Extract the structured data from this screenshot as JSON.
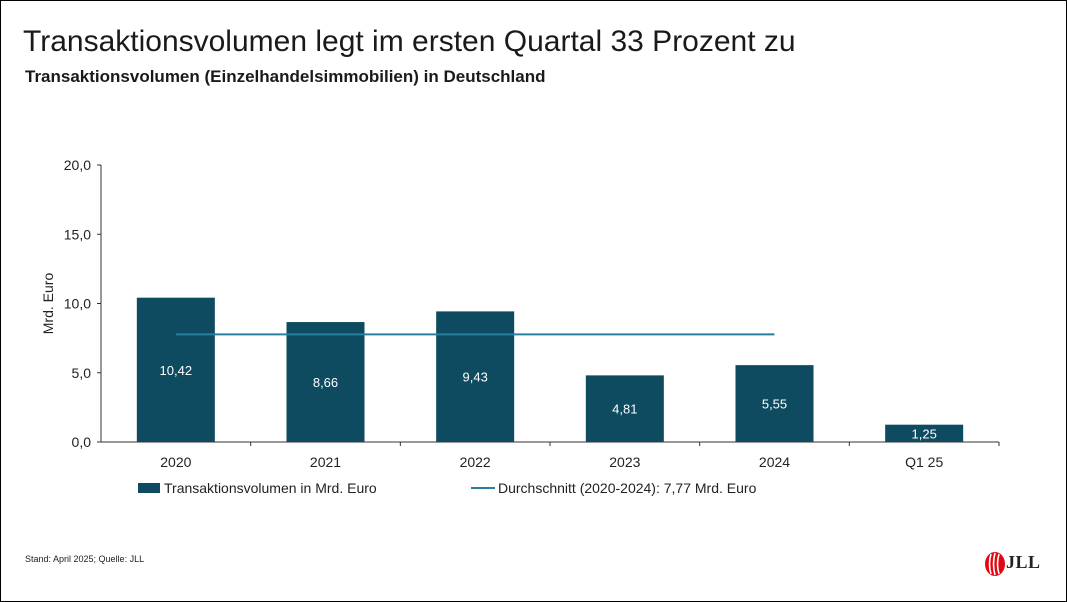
{
  "title": "Transaktionsvolumen legt im ersten Quartal 33 Prozent zu",
  "subtitle": "Transaktionsvolumen (Einzelhandelsimmobilien) in Deutschland",
  "footer": "Stand: April 2025; Quelle: JLL",
  "logo_text": "JLL",
  "colors": {
    "bar": "#0e4a60",
    "average_line": "#2a7fa0",
    "logo_red": "#e30613"
  },
  "chart_data": {
    "type": "bar",
    "ylabel": "Mrd. Euro",
    "ylim": [
      0,
      20
    ],
    "yticks": [
      "0,0",
      "5,0",
      "10,0",
      "15,0",
      "20,0"
    ],
    "categories": [
      "2020",
      "2021",
      "2022",
      "2023",
      "2024",
      "Q1 25"
    ],
    "series": [
      {
        "name": "Transaktionsvolumen in Mrd. Euro",
        "values": [
          10.42,
          8.66,
          9.43,
          4.81,
          5.55,
          1.25
        ],
        "labels": [
          "10,42",
          "8,66",
          "9,43",
          "4,81",
          "5,55",
          "1,25"
        ]
      }
    ],
    "average": {
      "name": "Durchschnitt (2020-2024): 7,77 Mrd. Euro",
      "value": 7.77,
      "from_category": "2020",
      "to_category": "2024"
    },
    "legend": "bottom",
    "grid": false
  }
}
